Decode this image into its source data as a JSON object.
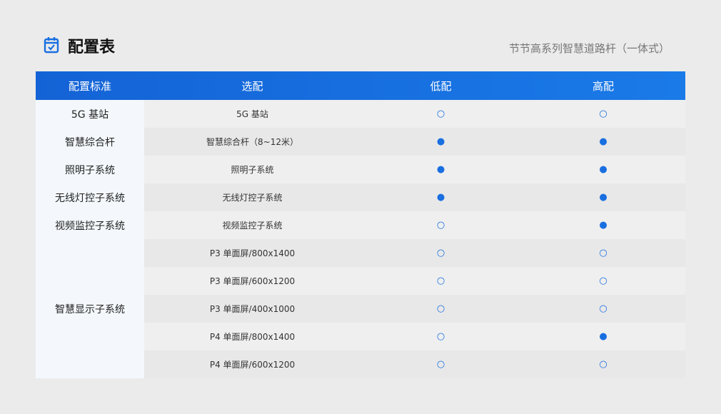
{
  "header": {
    "title": "配置表",
    "subtitle": "节节高系列智慧道路杆（一体式）"
  },
  "table": {
    "columns": [
      "配置标准",
      "选配",
      "低配",
      "高配"
    ],
    "groups": [
      {
        "name": "5G 基站",
        "options": [
          {
            "name": "5G 基站",
            "low": "○",
            "high": "○"
          }
        ]
      },
      {
        "name": "智慧综合杆",
        "options": [
          {
            "name": "智慧综合杆（8~12米）",
            "low": "●",
            "high": "●"
          }
        ]
      },
      {
        "name": "照明子系统",
        "options": [
          {
            "name": "照明子系统",
            "low": "●",
            "high": "●"
          }
        ]
      },
      {
        "name": "无线灯控子系统",
        "options": [
          {
            "name": "无线灯控子系统",
            "low": "●",
            "high": "●"
          }
        ]
      },
      {
        "name": "视频监控子系统",
        "options": [
          {
            "name": "视频监控子系统",
            "low": "○",
            "high": "●"
          }
        ]
      },
      {
        "name": "智慧显示子系统",
        "options": [
          {
            "name": "P3 单面屏/800x1400",
            "low": "○",
            "high": "○"
          },
          {
            "name": "P3 单面屏/600x1200",
            "low": "○",
            "high": "○"
          },
          {
            "name": "P3 单面屏/400x1000",
            "low": "○",
            "high": "○"
          },
          {
            "name": "P4 单面屏/800x1400",
            "low": "○",
            "high": "●"
          },
          {
            "name": "P4 单面屏/600x1200",
            "low": "○",
            "high": "○"
          }
        ]
      }
    ]
  }
}
